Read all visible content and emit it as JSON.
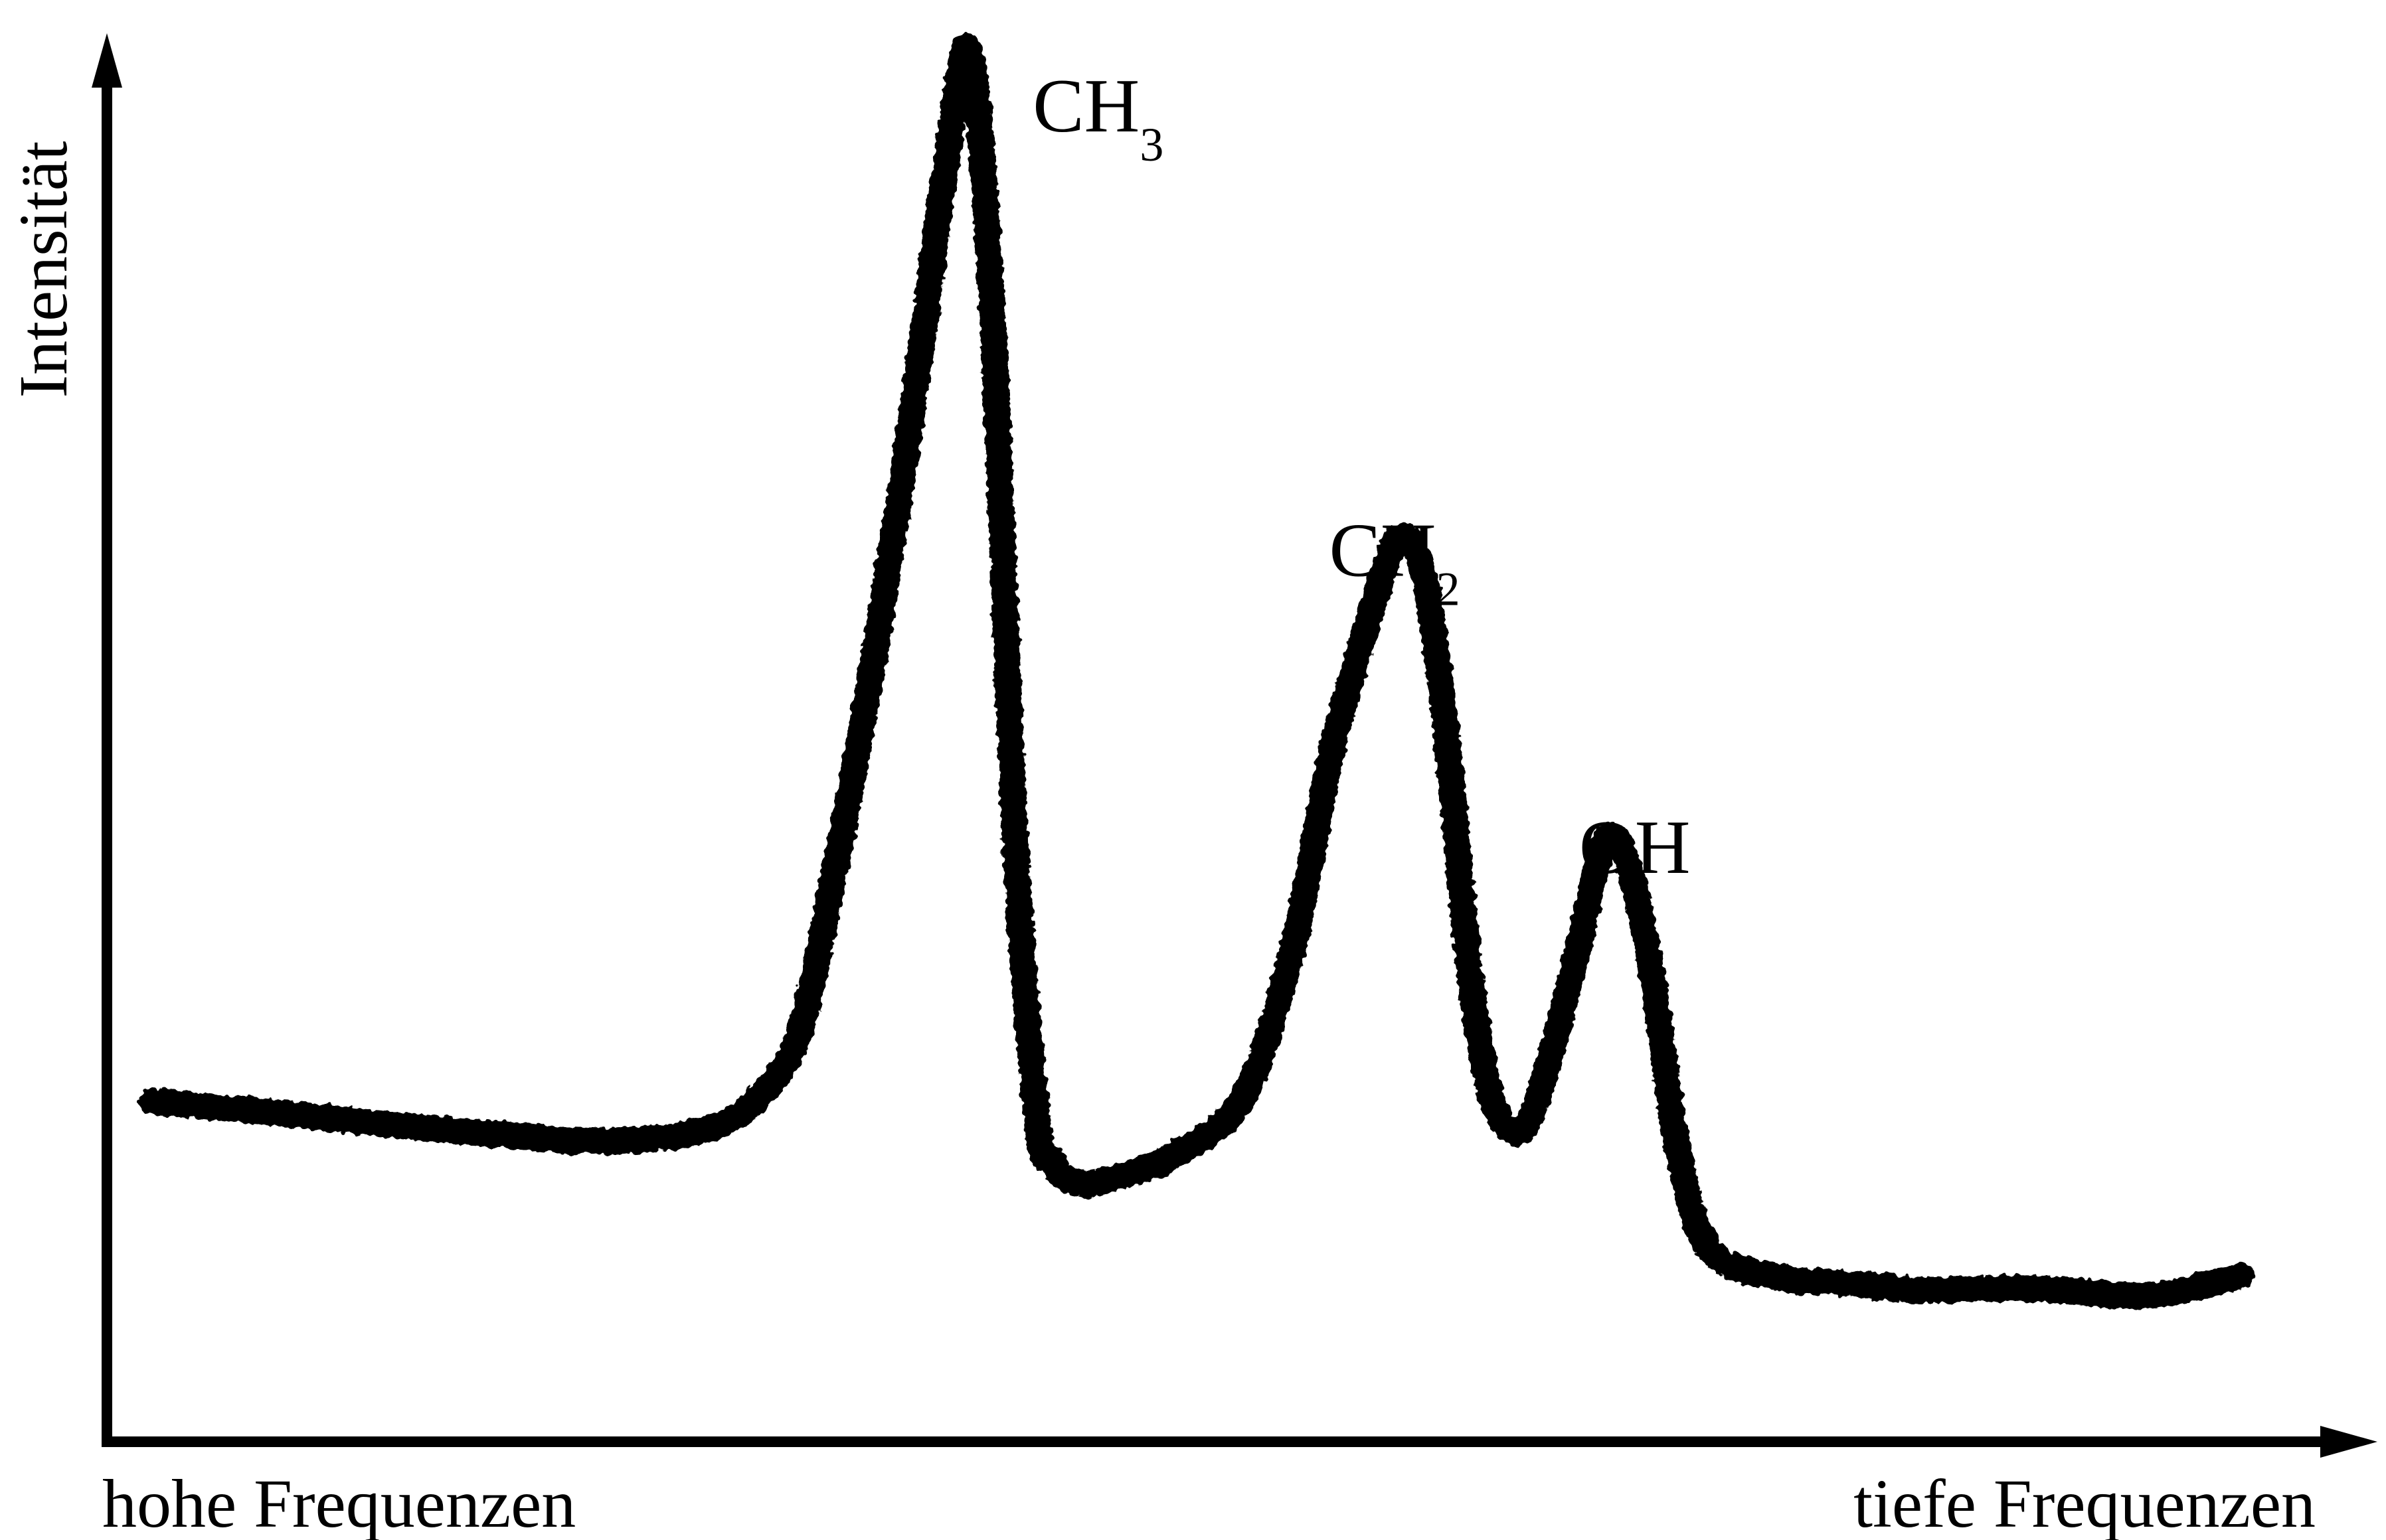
{
  "chart_data": {
    "type": "line",
    "title": "",
    "xlabel_left": "hohe Frequenzen",
    "xlabel_right": "tiefe Frequenzen",
    "ylabel": "Intensität",
    "xlim": [
      0,
      100
    ],
    "ylim": [
      0,
      100
    ],
    "grid": false,
    "legend": "none",
    "axis_color": "#000000",
    "line_color": "#000000",
    "series": [
      {
        "x": [
          2,
          6,
          10,
          14,
          18,
          20,
          22,
          24,
          26,
          28,
          30,
          31,
          32,
          33,
          34,
          35,
          36,
          37,
          38,
          39,
          40,
          41,
          41.6,
          42,
          43,
          44,
          45,
          47,
          50,
          52,
          53,
          54,
          56,
          57,
          58,
          59,
          60,
          61,
          62,
          62.6,
          63,
          64,
          65,
          66,
          67,
          68,
          69,
          70,
          71,
          72,
          73,
          73.9,
          74.5,
          76,
          78,
          80,
          85,
          90,
          94
        ],
        "values": [
          19.8,
          19.2,
          18.5,
          17.8,
          17.2,
          16.9,
          16.8,
          17.0,
          17.5,
          19.0,
          23.0,
          28.5,
          37.0,
          46.0,
          56.0,
          67.0,
          79.0,
          92.0,
          100.0,
          80.0,
          40.0,
          18.0,
          15.5,
          14.2,
          13.5,
          13.8,
          14.3,
          15.7,
          20.0,
          30.0,
          38.0,
          47.0,
          59.0,
          63.0,
          60.0,
          48.0,
          30.0,
          20.0,
          17.5,
          18.2,
          20.0,
          26.0,
          33.0,
          39.8,
          38.0,
          30.0,
          18.0,
          10.5,
          7.8,
          7.0,
          6.6,
          6.3,
          6.1,
          6.0,
          5.7,
          5.4,
          5.5,
          5.0,
          6.5
        ]
      }
    ],
    "annotations": [
      {
        "text": "CH",
        "subscript": "3",
        "x": 38.0,
        "y": 100.0
      },
      {
        "text": "CH",
        "subscript": "2",
        "x": 57.3,
        "y": 63.0
      },
      {
        "text": "OH",
        "subscript": "",
        "x": 67.0,
        "y": 39.8
      }
    ]
  }
}
